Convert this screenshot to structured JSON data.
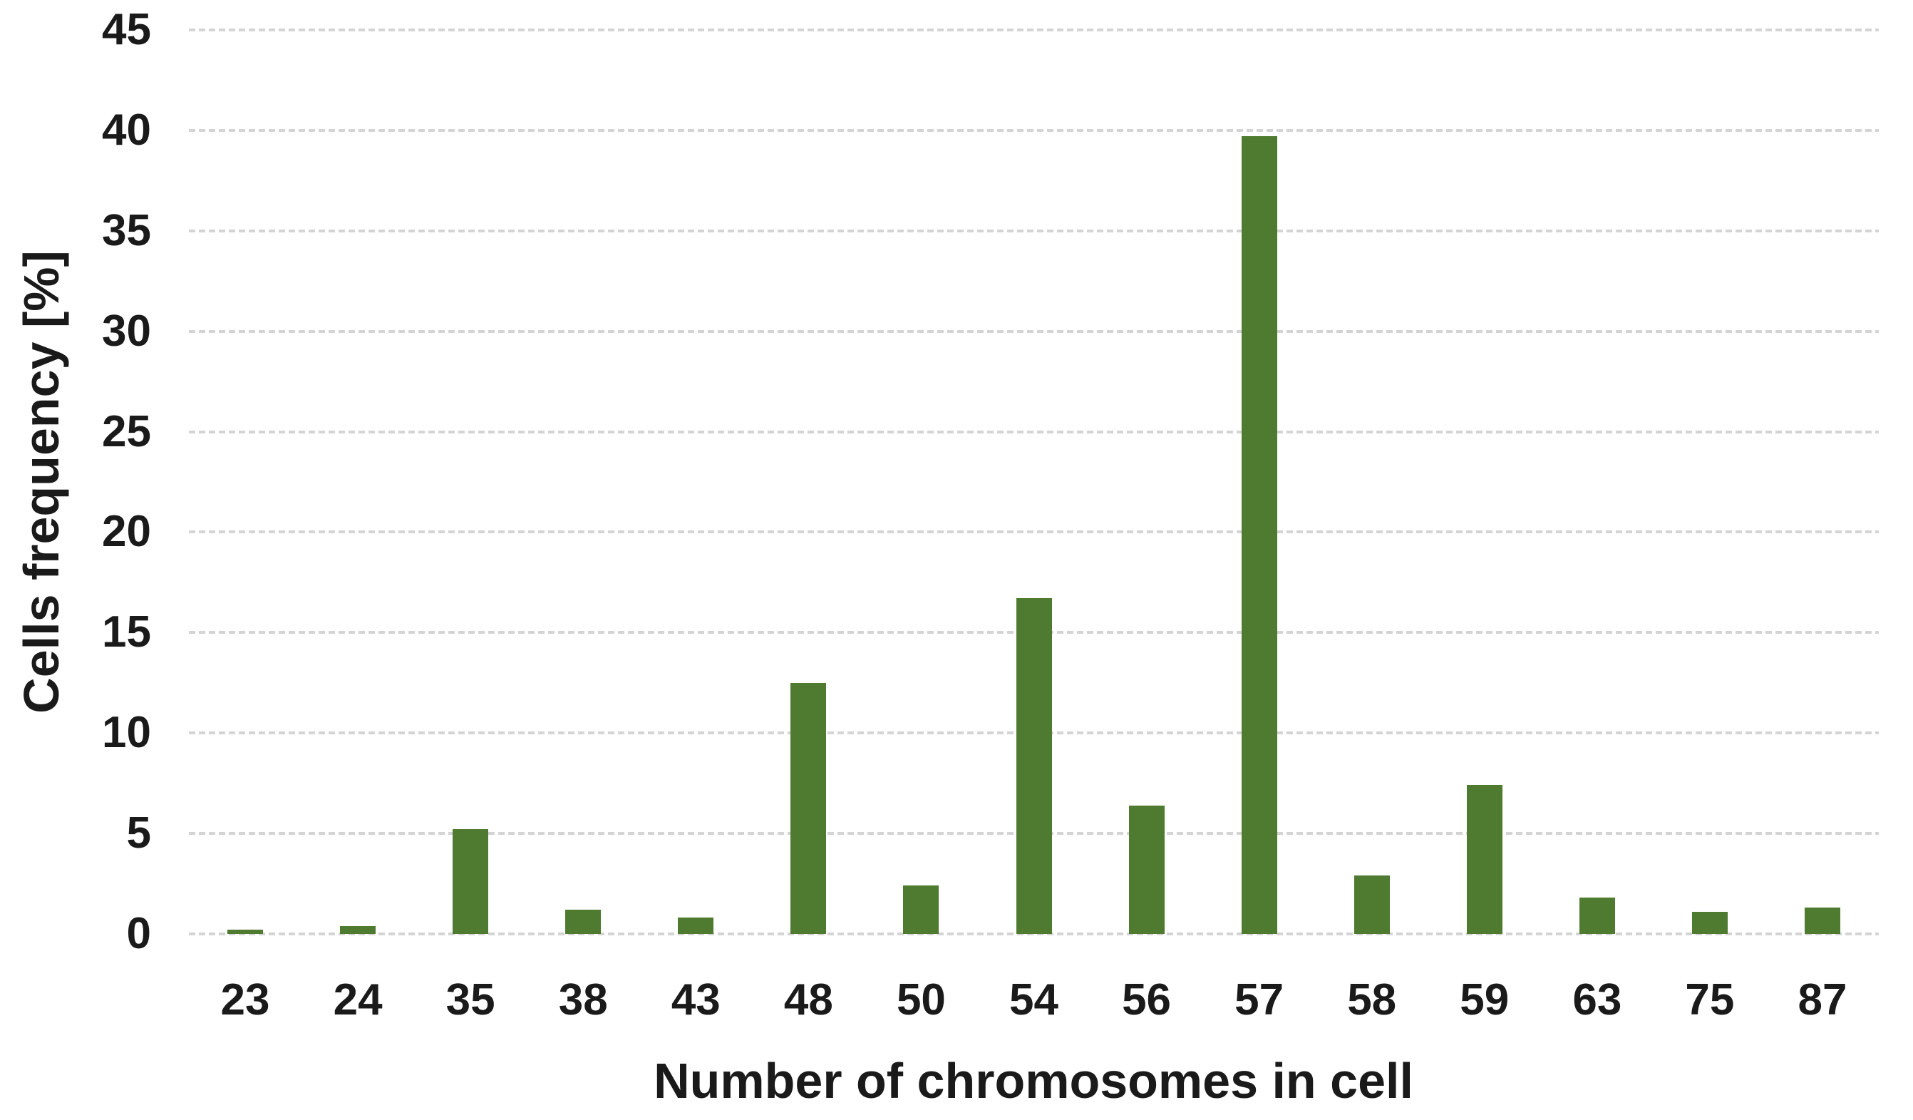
{
  "chart_data": {
    "type": "bar",
    "title": "",
    "xlabel": "Number of chromosomes in cell",
    "ylabel": "Cells frequency [%]",
    "categories": [
      "23",
      "24",
      "35",
      "38",
      "43",
      "48",
      "50",
      "54",
      "56",
      "57",
      "58",
      "59",
      "63",
      "75",
      "87"
    ],
    "values": [
      0.2,
      0.4,
      5.2,
      1.2,
      0.8,
      12.5,
      2.4,
      16.7,
      6.4,
      39.7,
      2.9,
      7.4,
      1.8,
      1.1,
      1.3
    ],
    "ylim": [
      0,
      45
    ],
    "yticks": [
      45,
      40,
      35,
      30,
      25,
      20,
      15,
      10,
      5,
      0
    ],
    "grid": "horizontal-dashed",
    "legend": "none",
    "bar_color": "#4e7b30",
    "gridline_color": "#d4d4d4",
    "text_color": "#1a1a1a",
    "background_color": "#ffffff"
  }
}
